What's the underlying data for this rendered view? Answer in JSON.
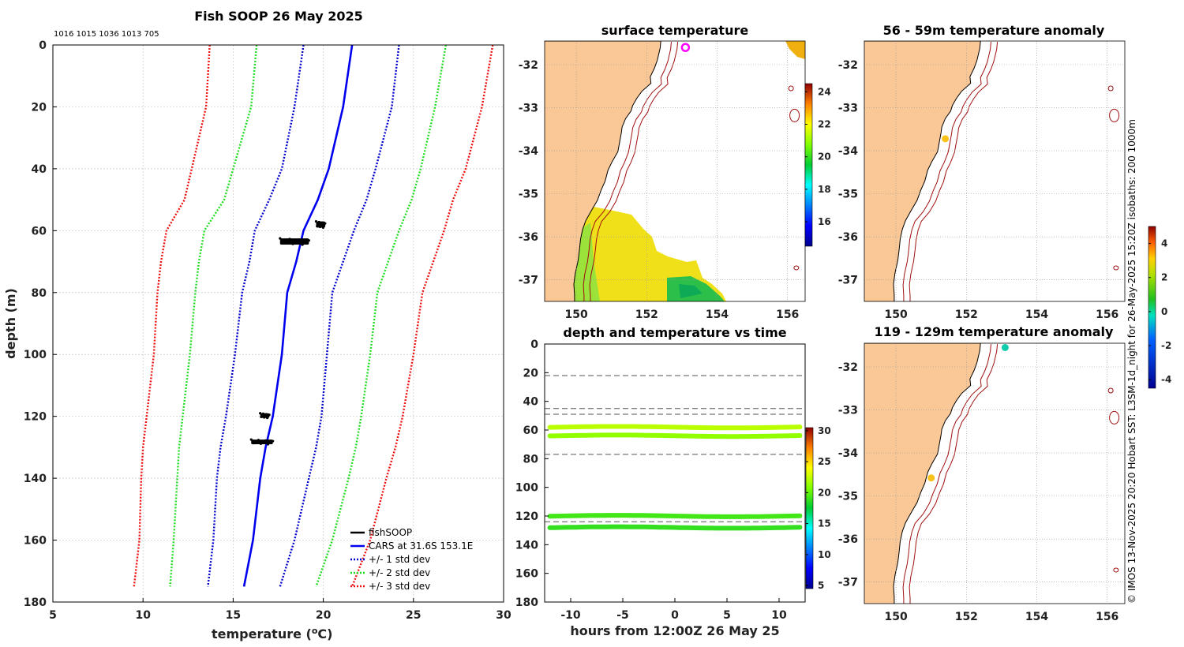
{
  "chart_data": [
    {
      "type": "line",
      "title": "Fish SOOP 26 May 2025",
      "counts_label": "1016 1015 1036 1013 705",
      "xlabel": "temperature (",
      "xlabel_unit": "o",
      "xlabel_end": "C)",
      "ylabel": "depth (m)",
      "xlim": [
        5,
        30
      ],
      "ylim": [
        0,
        180
      ],
      "xticks": [
        5,
        10,
        15,
        20,
        25,
        30
      ],
      "yticks": [
        0,
        20,
        40,
        60,
        80,
        100,
        120,
        140,
        160,
        180
      ],
      "depth": [
        0,
        20,
        40,
        50,
        60,
        70,
        80,
        100,
        120,
        130,
        140,
        160,
        175
      ],
      "series": [
        {
          "name": "CARS at 31.6S 153.1E",
          "color": "#0000ee",
          "dash": "",
          "values": [
            21.6,
            21.1,
            20.3,
            19.7,
            18.9,
            18.5,
            18.0,
            17.7,
            17.2,
            16.8,
            16.5,
            16.1,
            15.6
          ]
        },
        {
          "name": "+/- 1 std dev",
          "color": "#0000cc",
          "dash": "2,2",
          "values": [
            18.9,
            18.4,
            17.7,
            17.0,
            16.2,
            15.9,
            15.5,
            15.1,
            14.6,
            14.3,
            14.1,
            13.9,
            13.6
          ]
        },
        {
          "name": "+/- 1 std dev",
          "color": "#0000cc",
          "dash": "2,2",
          "values": [
            24.2,
            23.8,
            22.9,
            22.4,
            21.7,
            21.1,
            20.5,
            20.2,
            19.9,
            19.6,
            19.2,
            18.4,
            17.6
          ]
        },
        {
          "name": "+/- 2 std dev",
          "color": "#22dd22",
          "dash": "2,2",
          "values": [
            16.3,
            16.0,
            15.0,
            14.5,
            13.4,
            13.1,
            12.9,
            12.6,
            12.2,
            12.0,
            11.9,
            11.7,
            11.5
          ]
        },
        {
          "name": "+/- 2 std dev",
          "color": "#22dd22",
          "dash": "2,2",
          "values": [
            26.8,
            26.2,
            25.4,
            24.9,
            24.2,
            23.6,
            23.0,
            22.6,
            22.1,
            21.8,
            21.4,
            20.5,
            19.6
          ]
        },
        {
          "name": "+/- 3 std dev",
          "color": "#ee1111",
          "dash": "2,2",
          "values": [
            13.7,
            13.5,
            12.7,
            12.3,
            11.3,
            11.0,
            10.8,
            10.6,
            10.2,
            10.0,
            9.9,
            9.8,
            9.5
          ]
        },
        {
          "name": "+/- 3 std dev",
          "color": "#ee1111",
          "dash": "2,2",
          "values": [
            29.4,
            28.8,
            27.9,
            27.2,
            26.7,
            26.1,
            25.5,
            25.0,
            24.4,
            24.0,
            23.5,
            22.6,
            21.6
          ]
        }
      ],
      "observations": {
        "name": "fishSOOP",
        "color": "#000000",
        "clusters": [
          {
            "t": [
              19.6,
              20.1
            ],
            "d": [
              57,
              59
            ]
          },
          {
            "t": [
              17.6,
              19.2
            ],
            "d": [
              62.5,
              64.5
            ]
          },
          {
            "t": [
              16.5,
              17.0
            ],
            "d": [
              119,
              120.5
            ]
          },
          {
            "t": [
              16.0,
              17.2
            ],
            "d": [
              127.5,
              129
            ]
          }
        ]
      },
      "legend": [
        "fishSOOP",
        "CARS at 31.6S 153.1E",
        "+/- 1 std dev",
        "+/- 2 std dev",
        "+/- 3 std dev"
      ]
    },
    {
      "type": "heatmap",
      "title": "surface temperature",
      "xlim": [
        149.1,
        156.5
      ],
      "ylim": [
        -37.5,
        -31.45
      ],
      "xticks": [
        150,
        152,
        154,
        156
      ],
      "yticks": [
        -32,
        -33,
        -34,
        -35,
        -36,
        -37
      ],
      "colorbar": {
        "range": [
          14.5,
          24.5
        ],
        "ticks": [
          16,
          18,
          20,
          22,
          24
        ]
      },
      "vessel_position": {
        "lon": 153.1,
        "lat": -31.6
      }
    },
    {
      "type": "scatter",
      "title": "56 - 59m temperature anomaly",
      "xlim": [
        149.1,
        156.5
      ],
      "ylim": [
        -37.5,
        -31.45
      ],
      "xticks": [
        150,
        152,
        154,
        156
      ],
      "yticks": [
        -32,
        -33,
        -34,
        -35,
        -36,
        -37
      ],
      "points": [
        {
          "lon": 151.4,
          "lat": -33.72,
          "anomaly": 2.3
        }
      ]
    },
    {
      "type": "scatter",
      "title": "119 - 129m temperature anomaly",
      "xlim": [
        149.1,
        156.5
      ],
      "ylim": [
        -37.5,
        -31.45
      ],
      "xticks": [
        150,
        152,
        154,
        156
      ],
      "yticks": [
        -32,
        -33,
        -34,
        -35,
        -36,
        -37
      ],
      "points": [
        {
          "lon": 151.0,
          "lat": -34.58,
          "anomaly": 2.5
        },
        {
          "lon": 153.1,
          "lat": -31.55,
          "anomaly": -1.2
        }
      ],
      "colorbar": {
        "range": [
          -4.5,
          5
        ],
        "ticks": [
          4,
          2,
          0,
          -2,
          -4
        ]
      }
    },
    {
      "type": "scatter",
      "title": "depth and temperature vs time",
      "xlabel": "hours from 12:00Z 26 May 25",
      "xlim": [
        -12.5,
        12.5
      ],
      "ylim": [
        0,
        180
      ],
      "xticks": [
        -10,
        -5,
        0,
        5,
        10
      ],
      "yticks": [
        0,
        20,
        40,
        60,
        80,
        100,
        120,
        140,
        160,
        180
      ],
      "reference_depths": [
        22,
        45,
        49,
        77,
        124
      ],
      "series": [
        {
          "name": "58m",
          "depth": 58,
          "temperature": 22.2
        },
        {
          "name": "64m",
          "depth": 64,
          "temperature": 21.2
        },
        {
          "name": "120m",
          "depth": 120,
          "temperature": 19.2
        },
        {
          "name": "128m",
          "depth": 128,
          "temperature": 18.8
        }
      ],
      "colorbar": {
        "range": [
          4.5,
          30.5
        ],
        "ticks": [
          30,
          25,
          20,
          15,
          10,
          5
        ]
      }
    }
  ],
  "credit": "© IMOS 13-Nov-2025 20:20 Hobart SST: L3SM-1d_night for 26-May-2025 15:20Z isobaths: 200  1000m"
}
